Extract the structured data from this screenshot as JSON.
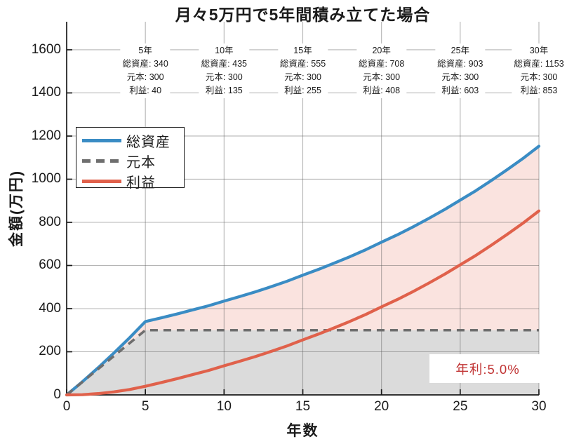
{
  "chart_data": {
    "type": "line",
    "title": "月々5万円で5年間積み立てた場合",
    "xlabel": "年数",
    "ylabel": "金額(万円)",
    "xlim": [
      0,
      30
    ],
    "ylim": [
      0,
      1730
    ],
    "xticks": [
      0,
      5,
      10,
      15,
      20,
      25,
      30
    ],
    "yticks": [
      0,
      200,
      400,
      600,
      800,
      1000,
      1200,
      1400,
      1600
    ],
    "grid": true,
    "x": [
      0,
      1,
      2,
      3,
      4,
      5,
      6,
      7,
      8,
      9,
      10,
      11,
      12,
      13,
      14,
      15,
      16,
      17,
      18,
      19,
      20,
      21,
      22,
      23,
      24,
      25,
      26,
      27,
      28,
      29,
      30
    ],
    "series": [
      {
        "name": "総資産",
        "color": "#3A8CC4",
        "style": "solid",
        "values": [
          0,
          61,
          126,
          194,
          265,
          340,
          357,
          375,
          394,
          413,
          435,
          456,
          478,
          502,
          527,
          555,
          582,
          611,
          641,
          673,
          708,
          742,
          779,
          818,
          859,
          903,
          947,
          995,
          1045,
          1097,
          1153
        ]
      },
      {
        "name": "元本",
        "color": "#6E6E6E",
        "style": "dashed",
        "values": [
          0,
          60,
          120,
          180,
          240,
          300,
          300,
          300,
          300,
          300,
          300,
          300,
          300,
          300,
          300,
          300,
          300,
          300,
          300,
          300,
          300,
          300,
          300,
          300,
          300,
          300,
          300,
          300,
          300,
          300,
          300
        ]
      },
      {
        "name": "利益",
        "color": "#E0614B",
        "style": "solid",
        "values": [
          0,
          1,
          6,
          14,
          25,
          40,
          57,
          75,
          94,
          113,
          135,
          156,
          178,
          202,
          227,
          255,
          282,
          311,
          341,
          373,
          408,
          442,
          479,
          518,
          559,
          603,
          647,
          695,
          745,
          797,
          853
        ]
      }
    ],
    "fills": [
      {
        "name": "principal-area",
        "color": "rgba(110,110,110,0.25)",
        "between": [
          "元本",
          "zero"
        ]
      },
      {
        "name": "profit-area",
        "color": "rgba(226,100,78,0.18)",
        "between": [
          "総資産",
          "元本"
        ]
      }
    ],
    "annotation_row_labels": {
      "total": "総資産",
      "principal": "元本",
      "profit": "利益"
    },
    "annotations": [
      {
        "x": 5,
        "label": "5年",
        "total": 340,
        "principal": 300,
        "profit": 40
      },
      {
        "x": 10,
        "label": "10年",
        "total": 435,
        "principal": 300,
        "profit": 135
      },
      {
        "x": 15,
        "label": "15年",
        "total": 555,
        "principal": 300,
        "profit": 255
      },
      {
        "x": 20,
        "label": "20年",
        "total": 708,
        "principal": 300,
        "profit": 408
      },
      {
        "x": 25,
        "label": "25年",
        "total": 903,
        "principal": 300,
        "profit": 603
      },
      {
        "x": 30,
        "label": "30年",
        "total": 1153,
        "principal": 300,
        "profit": 853
      }
    ],
    "rate_label": "年利:5.0%",
    "legend": {
      "position": "upper-left",
      "entries": [
        "総資産",
        "元本",
        "利益"
      ]
    },
    "colors": {
      "total_line": "#3A8CC4",
      "principal_line": "#6E6E6E",
      "profit_line": "#E0614B",
      "rate_text": "#C13434",
      "grid": "#bdbdbd",
      "axis": "#1a1a1a"
    }
  }
}
